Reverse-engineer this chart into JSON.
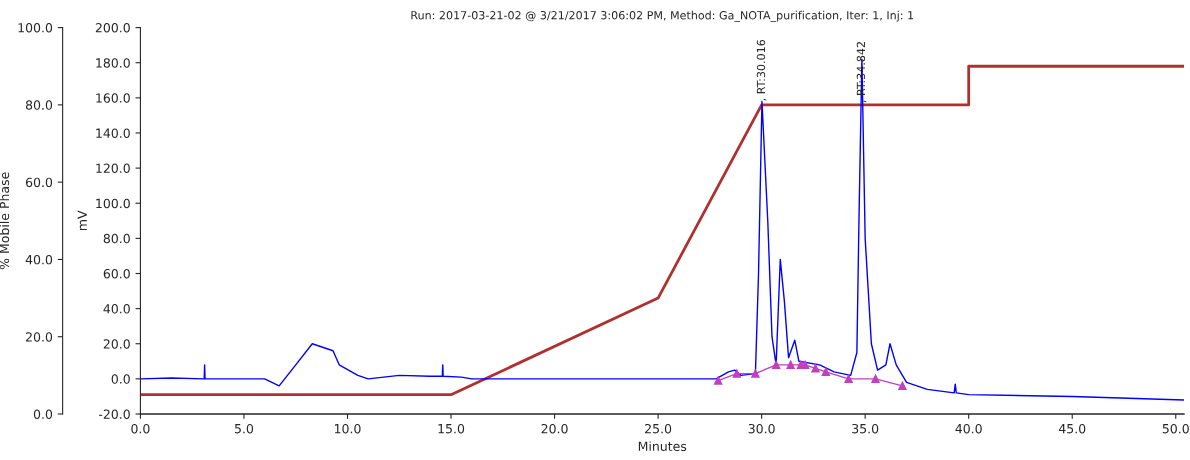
{
  "chart_data": {
    "type": "line",
    "title": "Run: 2017-03-21-02 @ 3/21/2017 3:06:02 PM, Method: Ga_NOTA_purification, Iter: 1, Inj: 1",
    "xlabel": "Minutes",
    "ylabel": "mV",
    "y2label": "% Mobile Phase",
    "series": [
      {
        "color": "#0000ff",
        "x": [
          0,
          1.5,
          3.08,
          3.1,
          3.12,
          6.0,
          6.7,
          7.5,
          8.3,
          9.3,
          9.6,
          10.5,
          11.0,
          12.5,
          14.0,
          14.58,
          14.6,
          14.62,
          15.5,
          16.0,
          20.0,
          25.0,
          27.8,
          28.4,
          28.7,
          29.0,
          29.7,
          29.85,
          30.016,
          30.3,
          30.5,
          30.7,
          30.9,
          31.1,
          31.3,
          31.6,
          31.8,
          32.8,
          33.5,
          34.3,
          34.6,
          34.7,
          34.842,
          35.0,
          35.3,
          35.6,
          36.0,
          36.2,
          36.5,
          37.0,
          38.0,
          39.3,
          39.35,
          39.4,
          40.0,
          45.0,
          50.4
        ],
        "values": [
          0,
          0.5,
          0,
          8,
          0,
          0,
          -4,
          8,
          20,
          16,
          8,
          2,
          0,
          2,
          1.5,
          1.5,
          8,
          1.5,
          1,
          0,
          0,
          0,
          0,
          4,
          5,
          2,
          3,
          60,
          158,
          89,
          24,
          8,
          68,
          44,
          12,
          22,
          10,
          8,
          4,
          2,
          15,
          90,
          182,
          80,
          20,
          5,
          8,
          20,
          8,
          -2,
          -6,
          -8,
          -3,
          -8,
          -9,
          -10,
          -12
        ]
      },
      {
        "color": "#c040c0",
        "marker": "triangle",
        "x": [
          27.9,
          28.8,
          29.7,
          30.7,
          31.4,
          31.9,
          32.1,
          32.6,
          33.1,
          34.2,
          35.5,
          36.8
        ],
        "values": [
          -1,
          3,
          3,
          8,
          8,
          8,
          8,
          6,
          4,
          0,
          0,
          -4
        ]
      },
      {
        "color": "#b03030",
        "axis": "y2",
        "x": [
          0,
          15,
          25,
          30,
          40,
          40,
          50.4
        ],
        "values": [
          5,
          5,
          30,
          80,
          80,
          90,
          90
        ]
      }
    ],
    "annotations": [
      {
        "text": ", RT:30.016",
        "x": 30.016,
        "y": 158
      },
      {
        "text": ", RT:34.842",
        "x": 34.842,
        "y": 157
      }
    ],
    "xlim": [
      0,
      50.4
    ],
    "xticks": [
      {
        "value": 0,
        "label": "0.0"
      },
      {
        "value": 5,
        "label": "5.0"
      },
      {
        "value": 10,
        "label": "10.0"
      },
      {
        "value": 15,
        "label": "15.0"
      },
      {
        "value": 20,
        "label": "20.0"
      },
      {
        "value": 25,
        "label": "25.0"
      },
      {
        "value": 30,
        "label": "30.0"
      },
      {
        "value": 35,
        "label": "35.0"
      },
      {
        "value": 40,
        "label": "40.0"
      },
      {
        "value": 45,
        "label": "45.0"
      },
      {
        "value": 50,
        "label": "50.0"
      }
    ],
    "ylim": [
      -20,
      200
    ],
    "yticks": [
      {
        "value": -20,
        "label": "-20.0"
      },
      {
        "value": 0,
        "label": "0.0"
      },
      {
        "value": 20,
        "label": "20.0"
      },
      {
        "value": 40,
        "label": "40.0"
      },
      {
        "value": 60,
        "label": "60.0"
      },
      {
        "value": 80,
        "label": "80.0"
      },
      {
        "value": 100,
        "label": "100.0"
      },
      {
        "value": 120,
        "label": "120.0"
      },
      {
        "value": 140,
        "label": "140.0"
      },
      {
        "value": 160,
        "label": "160.0"
      },
      {
        "value": 180,
        "label": "180.0"
      },
      {
        "value": 200,
        "label": "200.0"
      }
    ],
    "y2lim": [
      0,
      100
    ],
    "y2ticks": [
      {
        "value": 0,
        "label": "0.0"
      },
      {
        "value": 20,
        "label": "20.0"
      },
      {
        "value": 40,
        "label": "40.0"
      },
      {
        "value": 60,
        "label": "60.0"
      },
      {
        "value": 80,
        "label": "80.0"
      },
      {
        "value": 100,
        "label": "100.0"
      }
    ],
    "grid": false,
    "legend": false
  }
}
